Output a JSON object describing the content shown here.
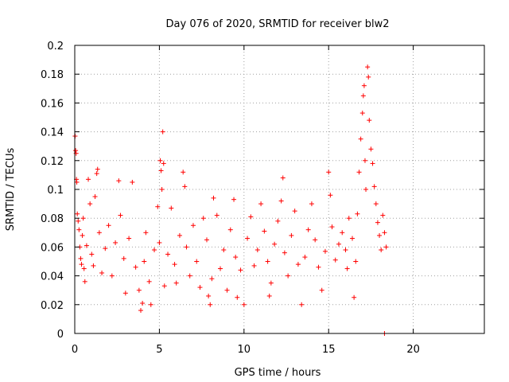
{
  "chart_data": {
    "type": "scatter",
    "title": "Day 076 of 2020, SRMTID for receiver blw2",
    "xlabel": "GPS time / hours",
    "ylabel": "SRMTID / TECUs",
    "xlim": [
      0,
      24.2
    ],
    "ylim": [
      0,
      0.2
    ],
    "x_ticks": [
      0,
      5,
      10,
      15,
      20
    ],
    "y_ticks": [
      0,
      0.02,
      0.04,
      0.06,
      0.08,
      0.1,
      0.12,
      0.14,
      0.16,
      0.18,
      0.2
    ],
    "x_tick_labels": [
      "0",
      "5",
      "10",
      "15",
      "20"
    ],
    "y_tick_labels": [
      "0",
      "0.02",
      "0.04",
      "0.06",
      "0.08",
      "0.1",
      "0.12",
      "0.14",
      "0.16",
      "0.18",
      "0.2"
    ],
    "grid": true,
    "marker": "+",
    "color": "#ff0000",
    "series": [
      {
        "name": "SRMTID",
        "points": [
          [
            0.02,
            0.137
          ],
          [
            0.05,
            0.127
          ],
          [
            0.08,
            0.125
          ],
          [
            0.1,
            0.107
          ],
          [
            0.12,
            0.105
          ],
          [
            0.15,
            0.083
          ],
          [
            0.2,
            0.078
          ],
          [
            0.25,
            0.072
          ],
          [
            0.3,
            0.06
          ],
          [
            0.35,
            0.052
          ],
          [
            0.4,
            0.048
          ],
          [
            0.45,
            0.068
          ],
          [
            0.5,
            0.08
          ],
          [
            0.55,
            0.045
          ],
          [
            0.6,
            0.036
          ],
          [
            0.7,
            0.061
          ],
          [
            0.8,
            0.107
          ],
          [
            0.9,
            0.09
          ],
          [
            1.0,
            0.055
          ],
          [
            1.1,
            0.047
          ],
          [
            1.2,
            0.095
          ],
          [
            1.3,
            0.111
          ],
          [
            1.35,
            0.114
          ],
          [
            1.45,
            0.07
          ],
          [
            1.6,
            0.042
          ],
          [
            1.8,
            0.059
          ],
          [
            2.0,
            0.075
          ],
          [
            2.2,
            0.04
          ],
          [
            2.4,
            0.063
          ],
          [
            2.6,
            0.106
          ],
          [
            2.7,
            0.082
          ],
          [
            2.9,
            0.052
          ],
          [
            3.0,
            0.028
          ],
          [
            3.2,
            0.066
          ],
          [
            3.4,
            0.105
          ],
          [
            3.6,
            0.046
          ],
          [
            3.8,
            0.03
          ],
          [
            3.9,
            0.016
          ],
          [
            4.0,
            0.021
          ],
          [
            4.1,
            0.05
          ],
          [
            4.2,
            0.07
          ],
          [
            4.4,
            0.036
          ],
          [
            4.5,
            0.02
          ],
          [
            4.7,
            0.058
          ],
          [
            4.9,
            0.088
          ],
          [
            5.0,
            0.063
          ],
          [
            5.05,
            0.12
          ],
          [
            5.1,
            0.113
          ],
          [
            5.15,
            0.1
          ],
          [
            5.2,
            0.14
          ],
          [
            5.25,
            0.118
          ],
          [
            5.3,
            0.033
          ],
          [
            5.5,
            0.055
          ],
          [
            5.7,
            0.087
          ],
          [
            5.9,
            0.048
          ],
          [
            6.0,
            0.035
          ],
          [
            6.2,
            0.068
          ],
          [
            6.4,
            0.112
          ],
          [
            6.5,
            0.102
          ],
          [
            6.6,
            0.06
          ],
          [
            6.8,
            0.04
          ],
          [
            7.0,
            0.075
          ],
          [
            7.2,
            0.05
          ],
          [
            7.4,
            0.032
          ],
          [
            7.6,
            0.08
          ],
          [
            7.8,
            0.065
          ],
          [
            7.9,
            0.026
          ],
          [
            8.0,
            0.02
          ],
          [
            8.1,
            0.038
          ],
          [
            8.2,
            0.094
          ],
          [
            8.4,
            0.082
          ],
          [
            8.6,
            0.045
          ],
          [
            8.8,
            0.058
          ],
          [
            9.0,
            0.03
          ],
          [
            9.2,
            0.072
          ],
          [
            9.4,
            0.093
          ],
          [
            9.5,
            0.053
          ],
          [
            9.6,
            0.025
          ],
          [
            9.8,
            0.044
          ],
          [
            10.0,
            0.02
          ],
          [
            10.2,
            0.066
          ],
          [
            10.4,
            0.081
          ],
          [
            10.6,
            0.047
          ],
          [
            10.8,
            0.058
          ],
          [
            11.0,
            0.09
          ],
          [
            11.2,
            0.071
          ],
          [
            11.4,
            0.05
          ],
          [
            11.5,
            0.026
          ],
          [
            11.6,
            0.035
          ],
          [
            11.8,
            0.062
          ],
          [
            12.0,
            0.078
          ],
          [
            12.2,
            0.092
          ],
          [
            12.3,
            0.108
          ],
          [
            12.4,
            0.056
          ],
          [
            12.6,
            0.04
          ],
          [
            12.8,
            0.068
          ],
          [
            13.0,
            0.085
          ],
          [
            13.2,
            0.048
          ],
          [
            13.4,
            0.02
          ],
          [
            13.6,
            0.053
          ],
          [
            13.8,
            0.072
          ],
          [
            14.0,
            0.09
          ],
          [
            14.2,
            0.065
          ],
          [
            14.4,
            0.046
          ],
          [
            14.6,
            0.03
          ],
          [
            14.8,
            0.057
          ],
          [
            15.0,
            0.112
          ],
          [
            15.1,
            0.096
          ],
          [
            15.2,
            0.074
          ],
          [
            15.4,
            0.051
          ],
          [
            15.6,
            0.062
          ],
          [
            15.8,
            0.07
          ],
          [
            16.0,
            0.058
          ],
          [
            16.1,
            0.045
          ],
          [
            16.2,
            0.08
          ],
          [
            16.4,
            0.066
          ],
          [
            16.5,
            0.025
          ],
          [
            16.6,
            0.05
          ],
          [
            16.7,
            0.083
          ],
          [
            16.8,
            0.112
          ],
          [
            16.9,
            0.135
          ],
          [
            17.0,
            0.153
          ],
          [
            17.05,
            0.165
          ],
          [
            17.1,
            0.172
          ],
          [
            17.15,
            0.12
          ],
          [
            17.2,
            0.1
          ],
          [
            17.3,
            0.185
          ],
          [
            17.35,
            0.178
          ],
          [
            17.4,
            0.148
          ],
          [
            17.5,
            0.128
          ],
          [
            17.6,
            0.118
          ],
          [
            17.7,
            0.102
          ],
          [
            17.8,
            0.09
          ],
          [
            17.9,
            0.077
          ],
          [
            18.0,
            0.068
          ],
          [
            18.1,
            0.058
          ],
          [
            18.2,
            0.082
          ],
          [
            18.3,
            0.07
          ],
          [
            18.4,
            0.06
          ],
          [
            18.3,
            0.0
          ]
        ]
      }
    ]
  }
}
